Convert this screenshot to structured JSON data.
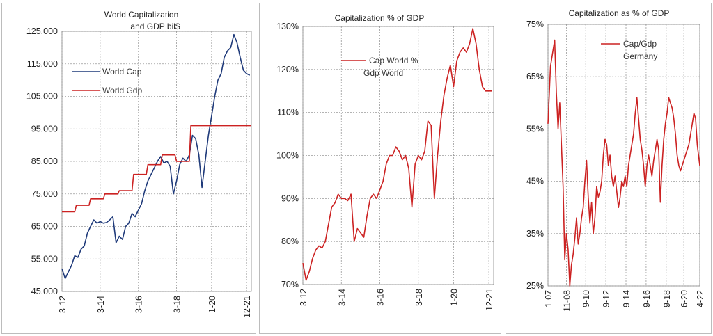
{
  "chart_data": [
    {
      "type": "line",
      "title": "World Capitalization",
      "subtitle": "and GDP bil$",
      "xlabel": "",
      "ylabel": "",
      "ylim": [
        45000,
        125000
      ],
      "yticks": [
        45000,
        55000,
        65000,
        75000,
        85000,
        95000,
        105000,
        115000,
        125000
      ],
      "ytick_labels": [
        "45.000",
        "55.000",
        "65.000",
        "75.000",
        "85.000",
        "95.000",
        "105.000",
        "115.000",
        "125.000"
      ],
      "xlim": [
        0,
        119
      ],
      "xtick_labels": [
        "3-12",
        "3-14",
        "3-16",
        "3-18",
        "1-20",
        "12-21"
      ],
      "xtick_pos": [
        0,
        24,
        48,
        72,
        94,
        116
      ],
      "grid": true,
      "legend_position": "middle-left",
      "series": [
        {
          "name": "World Cap",
          "color": "#1f3a7a",
          "x": [
            0,
            2,
            4,
            6,
            8,
            10,
            12,
            14,
            16,
            18,
            20,
            22,
            24,
            26,
            28,
            30,
            32,
            34,
            36,
            38,
            40,
            42,
            44,
            46,
            48,
            50,
            52,
            54,
            56,
            58,
            60,
            62,
            64,
            66,
            68,
            70,
            72,
            74,
            76,
            78,
            80,
            82,
            84,
            86,
            88,
            90,
            92,
            94,
            96,
            98,
            100,
            102,
            104,
            106,
            108,
            110,
            112,
            114,
            116,
            118
          ],
          "y": [
            52000,
            49000,
            51000,
            53000,
            56000,
            55500,
            58000,
            59000,
            63000,
            65000,
            67000,
            66000,
            66500,
            66000,
            66200,
            67000,
            68000,
            60000,
            62000,
            61000,
            65000,
            66000,
            69000,
            68000,
            70000,
            72000,
            76000,
            79000,
            81000,
            83000,
            85000,
            86500,
            84500,
            85000,
            83500,
            75000,
            79000,
            84000,
            86000,
            85000,
            87000,
            93000,
            92000,
            87000,
            77000,
            85000,
            93000,
            99000,
            105000,
            110000,
            112000,
            117000,
            119000,
            120000,
            124000,
            121500,
            117000,
            113000,
            112000,
            111500
          ]
        },
        {
          "name": "World Gdp",
          "color": "#cc2222",
          "x": [
            0,
            8,
            9,
            17,
            18,
            26,
            27,
            35,
            36,
            44,
            45,
            53,
            54,
            62,
            63,
            71,
            72,
            80,
            81,
            89,
            90,
            99,
            100,
            119
          ],
          "y": [
            69500,
            69500,
            71500,
            71500,
            73500,
            73500,
            75000,
            75000,
            76000,
            76000,
            81000,
            81000,
            84000,
            84000,
            87000,
            87000,
            85000,
            85000,
            96000,
            96000,
            96000,
            96000,
            96000,
            96000
          ]
        }
      ]
    },
    {
      "type": "line",
      "title": "Capitalization % of GDP",
      "xlabel": "",
      "ylabel": "",
      "ylim": [
        70,
        130
      ],
      "yticks": [
        70,
        80,
        90,
        100,
        110,
        120,
        130
      ],
      "ytick_labels": [
        "70%",
        "80%",
        "90%",
        "100%",
        "110%",
        "120%",
        "130%"
      ],
      "xlim": [
        0,
        119
      ],
      "xtick_labels": [
        "3-12",
        "3-14",
        "3-16",
        "3-18",
        "1-20",
        "12-21"
      ],
      "xtick_pos": [
        0,
        24,
        48,
        72,
        94,
        116
      ],
      "grid": true,
      "legend_position": "top-center",
      "series": [
        {
          "name": "Cap World % Gdp World",
          "color": "#cc2222",
          "x": [
            0,
            2,
            4,
            6,
            8,
            10,
            12,
            14,
            16,
            18,
            20,
            22,
            24,
            26,
            28,
            30,
            32,
            34,
            36,
            38,
            40,
            42,
            44,
            46,
            48,
            50,
            52,
            54,
            56,
            58,
            60,
            62,
            64,
            66,
            68,
            70,
            72,
            74,
            76,
            78,
            80,
            82,
            84,
            86,
            88,
            90,
            92,
            94,
            96,
            98,
            100,
            102,
            104,
            106,
            108,
            110,
            112,
            114,
            116,
            118
          ],
          "y": [
            75,
            71,
            73,
            76,
            78,
            79,
            78.5,
            80,
            84,
            88,
            89,
            91,
            90,
            90,
            89.5,
            91,
            80,
            83,
            82,
            81,
            86,
            90,
            91,
            90,
            92,
            94,
            98,
            100,
            100,
            102,
            101,
            99,
            100,
            97,
            88,
            98,
            100,
            99,
            101,
            108,
            107,
            90,
            100,
            108,
            114,
            118,
            121,
            116,
            122,
            124,
            125,
            124,
            126,
            129.5,
            126,
            120,
            116,
            115,
            115,
            115
          ]
        }
      ]
    },
    {
      "type": "line",
      "title": "Capitalization as % of GDP",
      "xlabel": "",
      "ylabel": "",
      "ylim": [
        25,
        75
      ],
      "yticks": [
        25,
        35,
        45,
        55,
        65,
        75
      ],
      "ytick_labels": [
        "25%",
        "35%",
        "45%",
        "55%",
        "65%",
        "75%"
      ],
      "xlim": [
        0,
        181
      ],
      "xtick_labels": [
        "1-07",
        "11-08",
        "9-10",
        "9-12",
        "9-14",
        "9-16",
        "9-18",
        "6-20",
        "4-22"
      ],
      "xtick_pos": [
        0,
        22,
        45,
        69,
        93,
        117,
        141,
        162,
        181
      ],
      "grid": true,
      "legend_position": "top-right",
      "series": [
        {
          "name": "Cap/Gdp Germany",
          "color": "#cc2222",
          "x": [
            0,
            3,
            6,
            8,
            10,
            12,
            14,
            16,
            18,
            20,
            22,
            24,
            26,
            28,
            30,
            32,
            34,
            36,
            38,
            40,
            42,
            44,
            46,
            48,
            50,
            52,
            54,
            56,
            58,
            60,
            62,
            64,
            66,
            68,
            70,
            72,
            74,
            76,
            78,
            80,
            82,
            84,
            86,
            88,
            90,
            92,
            94,
            96,
            98,
            100,
            102,
            104,
            106,
            108,
            110,
            112,
            114,
            116,
            118,
            120,
            122,
            124,
            126,
            128,
            130,
            132,
            134,
            136,
            138,
            140,
            142,
            144,
            146,
            148,
            150,
            152,
            154,
            156,
            158,
            160,
            162,
            164,
            166,
            168,
            170,
            172,
            174,
            176,
            178,
            181
          ],
          "y": [
            56,
            67,
            70,
            72,
            62,
            55,
            60,
            52,
            44,
            30,
            35,
            32,
            25,
            29,
            31,
            34,
            38,
            33,
            35,
            38,
            40,
            45,
            49,
            42,
            37,
            41,
            35,
            38,
            44,
            42,
            43,
            45,
            50,
            53,
            52,
            48,
            50,
            46,
            44,
            46,
            43,
            40,
            42,
            45,
            44,
            46,
            44,
            48,
            50,
            52,
            54,
            58,
            61,
            57,
            53,
            51,
            48,
            44,
            48,
            50,
            48,
            46,
            49,
            51,
            53,
            51,
            41,
            48,
            53,
            56,
            58,
            61,
            60,
            59,
            57,
            54,
            50,
            48,
            47,
            48,
            49,
            50,
            51,
            52,
            54,
            56,
            58,
            57,
            52,
            48
          ]
        }
      ]
    }
  ]
}
